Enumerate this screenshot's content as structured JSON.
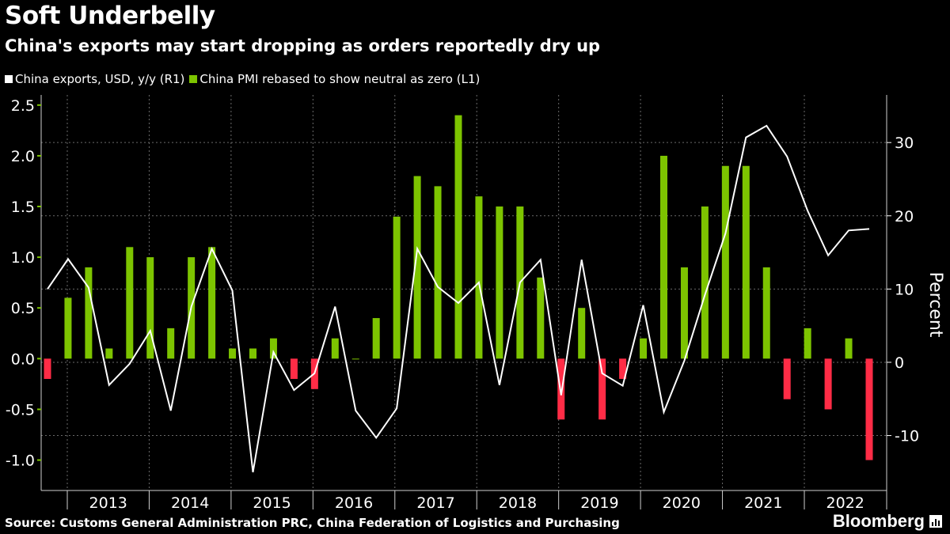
{
  "header": {
    "title": "Soft Underbelly",
    "subtitle": "China's exports may start dropping as orders reportedly dry up"
  },
  "footer": {
    "source": "Source: Customs General Administration PRC, China Federation of Logistics and Purchasing",
    "brand": "Bloomberg"
  },
  "colors": {
    "background": "#000000",
    "positive_bar": "#7dc400",
    "negative_bar": "#ff2c46",
    "line": "#ffffff",
    "grid": "#6a6a6a"
  },
  "chart_data": {
    "type": "bar+line",
    "legend": [
      {
        "label": "China exports, USD, y/y (R1)",
        "color": "#ffffff"
      },
      {
        "label": "China PMI rebased to show neutral as zero (L1)",
        "color": "#7dc400"
      }
    ],
    "left_axis": {
      "min": -1.3,
      "max": 2.6,
      "ticks": [
        2.5,
        2.0,
        1.5,
        1.0,
        0.5,
        0.0,
        -0.5,
        -1.0
      ],
      "tick_labels": [
        "2.5",
        "2.0",
        "1.5",
        "1.0",
        "0.5",
        "0.0",
        "-0.5",
        "-1.0"
      ]
    },
    "right_axis": {
      "min": -17.5,
      "max": 36.5,
      "ticks": [
        30,
        20,
        10,
        0,
        -10
      ],
      "tick_labels": [
        "30",
        "20",
        "10",
        "0",
        "-10"
      ],
      "label": "Percent"
    },
    "years": [
      "2013",
      "2014",
      "2015",
      "2016",
      "2017",
      "2018",
      "2019",
      "2020",
      "2021",
      "2022"
    ],
    "periods": [
      "2012Q4",
      "2013Q1",
      "2013Q2",
      "2013Q3",
      "2013Q4",
      "2014Q1",
      "2014Q2",
      "2014Q3",
      "2014Q4",
      "2015Q1",
      "2015Q2",
      "2015Q3",
      "2015Q4",
      "2016Q1",
      "2016Q2",
      "2016Q3",
      "2016Q4",
      "2017Q1",
      "2017Q2",
      "2017Q3",
      "2017Q4",
      "2018Q1",
      "2018Q2",
      "2018Q3",
      "2018Q4",
      "2019Q1",
      "2019Q2",
      "2019Q3",
      "2019Q4",
      "2020Q1",
      "2020Q2",
      "2020Q3",
      "2020Q4",
      "2021Q1",
      "2021Q2",
      "2021Q3",
      "2021Q4",
      "2022Q1",
      "2022Q2",
      "2022Q3",
      "2022Q4"
    ],
    "series": [
      {
        "name": "China PMI rebased to show neutral as zero (L1)",
        "kind": "bar",
        "axis": "left",
        "values": [
          -0.2,
          0.6,
          0.9,
          0.1,
          1.1,
          1.0,
          0.3,
          1.0,
          1.1,
          0.1,
          0.1,
          0.2,
          -0.2,
          -0.3,
          0.2,
          0.0,
          0.4,
          1.4,
          1.8,
          1.7,
          2.4,
          1.6,
          1.5,
          1.5,
          0.8,
          -0.6,
          0.5,
          -0.6,
          -0.2,
          0.2,
          2.0,
          0.9,
          1.5,
          1.9,
          1.9,
          0.9,
          -0.4,
          0.3,
          -0.5,
          0.2,
          -1.0
        ]
      },
      {
        "name": "China exports, USD, y/y (R1)",
        "kind": "line",
        "axis": "right",
        "values": [
          10.0,
          14.1,
          10.2,
          -3.1,
          -0.2,
          4.3,
          -6.6,
          7.6,
          15.5,
          9.8,
          -15.0,
          1.4,
          -3.8,
          -1.5,
          7.6,
          -6.6,
          -10.3,
          -6.3,
          15.5,
          10.3,
          8.1,
          10.9,
          -3.1,
          10.9,
          14.0,
          -4.5,
          14.0,
          -1.5,
          -3.2,
          7.8,
          -6.8,
          0.2,
          9.2,
          17.6,
          30.7,
          32.3,
          28.1,
          20.7,
          14.6,
          18.0,
          18.2
        ]
      }
    ]
  }
}
